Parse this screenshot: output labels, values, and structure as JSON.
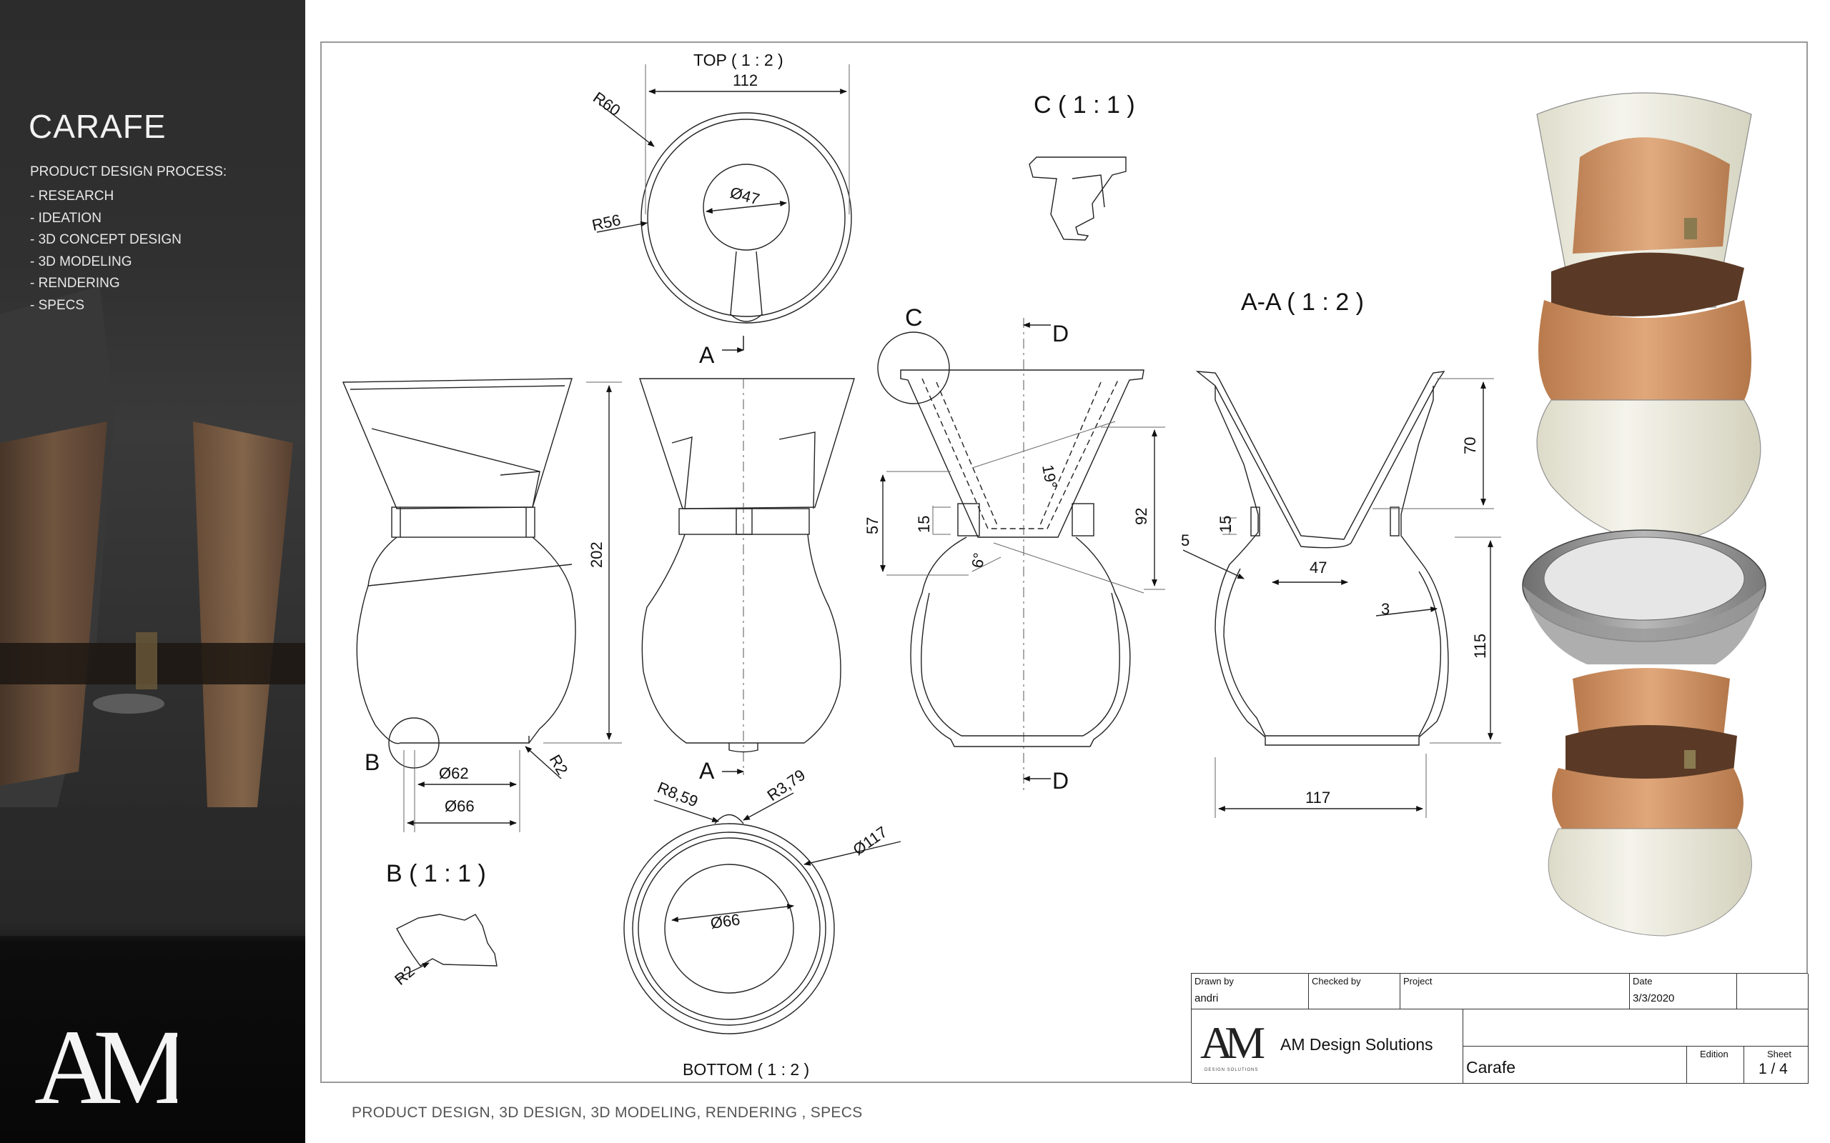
{
  "sidebar": {
    "title": "CARAFE",
    "process_heading": "PRODUCT DESIGN PROCESS:",
    "process_steps": [
      "- RESEARCH",
      "- IDEATION",
      "- 3D CONCEPT DESIGN",
      "- 3D MODELING",
      "- RENDERING",
      "- SPECS"
    ]
  },
  "footer": "PRODUCT DESIGN, 3D DESIGN, 3D MODELING, RENDERING , SPECS",
  "colors": {
    "panel_dark": "#2e2e2e",
    "sheet_border": "#9a9a9a",
    "wood": "#c58a5c",
    "leather": "#5a3a2a",
    "glass": "#ecead9"
  },
  "views": {
    "top": "TOP ( 1 : 2 )",
    "bottom": "BOTTOM ( 1 : 2 )",
    "detail_b": "B ( 1 : 1 )",
    "detail_c": "C ( 1 : 1 )",
    "section_aa": "A-A ( 1 : 2 )"
  },
  "markers": {
    "a": "A",
    "b": "B",
    "c": "C",
    "d": "D"
  },
  "dimensions": {
    "top_width": "112",
    "top_r60": "R60",
    "top_r56": "R56",
    "top_dia47": "Ø47",
    "front_height": "202",
    "front_dia62": "Ø62",
    "front_dia66": "Ø66",
    "front_r2": "R2",
    "bottom_r859": "R8,59",
    "bottom_r379": "R3,79",
    "bottom_dia117": "Ø117",
    "bottom_dia66": "Ø66",
    "detail_r2": "R2",
    "side_57": "57",
    "side_15": "15",
    "side_19deg": "19°",
    "side_6deg": "6°",
    "side_92": "92",
    "sec_70": "70",
    "sec_15": "15",
    "sec_5": "5",
    "sec_47": "47",
    "sec_3": "3",
    "sec_115": "115",
    "sec_117": "117"
  },
  "title_block": {
    "drawn_by_label": "Drawn by",
    "drawn_by": "andri",
    "checked_by_label": "Checked by",
    "project_label": "Project",
    "date_label": "Date",
    "date": "3/3/2020",
    "company": "AM Design Solutions",
    "logo_text": "AM",
    "logo_sub": "DESIGN SOLUTIONS",
    "part_name": "Carafe",
    "edition_label": "Edition",
    "sheet_label": "Sheet",
    "sheet": "1 / 4"
  },
  "brand_logo": "AM"
}
